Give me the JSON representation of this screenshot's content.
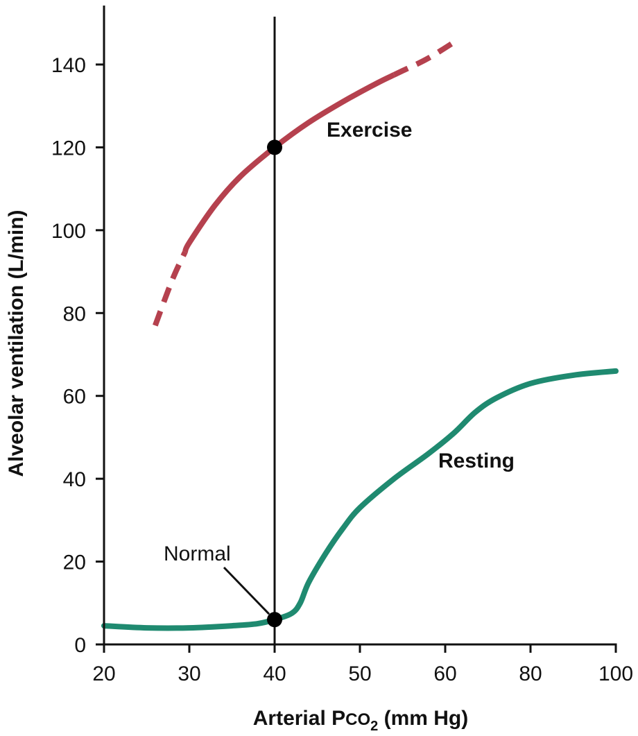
{
  "chart_data": {
    "type": "line",
    "xlabel": {
      "main": "Arterial P",
      "sub_small": "CO",
      "subscript": "2",
      "units": " (mm Hg)"
    },
    "ylabel": "Alveolar ventilation (L/min)",
    "x_ticks": [
      "20",
      "30",
      "40",
      "50",
      "60",
      "80",
      "100"
    ],
    "y_ticks": [
      0,
      20,
      40,
      60,
      80,
      100,
      120,
      140
    ],
    "ylim": [
      0,
      150
    ],
    "grid": false,
    "colors": {
      "exercise": "#b5414e",
      "resting": "#1f8a70",
      "axis": "#111111"
    },
    "series": [
      {
        "name": "Exercise",
        "x": [
          26,
          28,
          30,
          33,
          36,
          40,
          44,
          48,
          52,
          55,
          58,
          63
        ],
        "y": [
          77,
          88,
          97,
          106,
          113,
          120,
          126,
          131,
          135.5,
          138.5,
          141.5,
          146
        ],
        "dashed_x_ranges": [
          [
            26,
            29.5
          ],
          [
            54,
            63
          ]
        ]
      },
      {
        "name": "Resting",
        "x": [
          20,
          25,
          30,
          35,
          38,
          40,
          42,
          43,
          44,
          46,
          48,
          50,
          54,
          58,
          62,
          67,
          72,
          80,
          90,
          100
        ],
        "y": [
          4.5,
          4,
          4,
          4.5,
          5,
          6,
          7.5,
          10,
          15,
          22,
          28,
          33,
          40,
          46,
          51,
          56,
          59.5,
          63,
          65,
          66
        ]
      }
    ],
    "vertical_line_x": 40,
    "points": [
      {
        "x": 40,
        "y": 120
      },
      {
        "x": 40,
        "y": 6
      }
    ],
    "annotations": {
      "normal": "Normal"
    }
  }
}
